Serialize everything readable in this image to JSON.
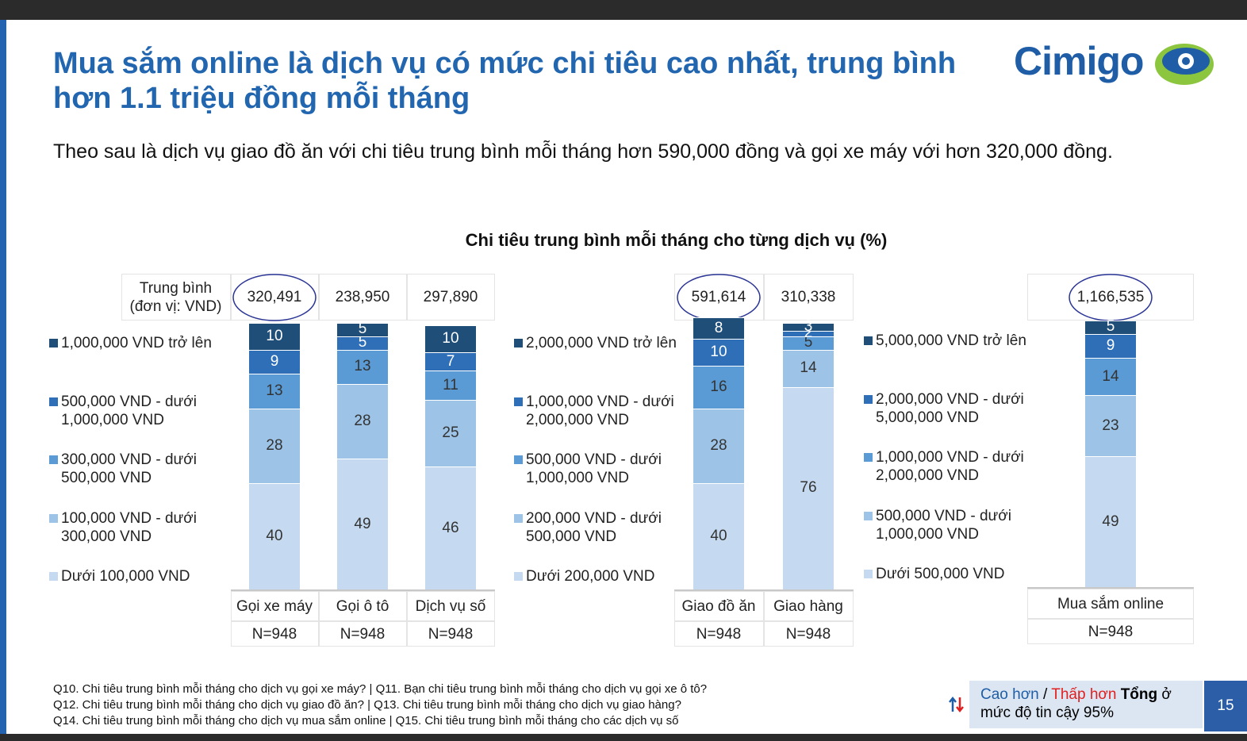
{
  "slide": {
    "title": "Mua sắm online là dịch vụ có mức chi tiêu cao nhất, trung bình hơn 1.1 triệu đồng mỗi tháng",
    "subtitle": "Theo sau là dịch vụ giao đồ ăn với chi tiêu trung bình mỗi tháng hơn 590,000 đồng và gọi xe máy với hơn 320,000 đồng.",
    "logo": "Cimigo",
    "chart_title": "Chi tiêu trung bình mỗi tháng cho từng dịch vụ (%)",
    "footnotes": [
      "Q10. Chi tiêu trung bình mỗi tháng cho dịch vụ gọi xe máy? | Q11. Bạn chi tiêu trung bình mỗi tháng cho dịch vụ gọi xe ô tô?",
      "Q12. Chi tiêu trung bình mỗi tháng cho dịch vụ giao đồ ăn? | Q13. Chi tiêu trung bình mỗi tháng cho dịch vụ giao hàng?",
      "Q14. Chi tiêu trung bình mỗi tháng cho dịch vụ mua sắm online | Q15. Chi tiêu trung bình mỗi tháng cho các dịch vụ số"
    ],
    "significance": [
      "Cao hơn",
      "/",
      "Thấp hơn",
      "Tổng",
      "ở mức độ tin cậy 95%"
    ],
    "page_number": "15"
  },
  "chart_data": [
    {
      "type": "bar",
      "stacked": true,
      "ylim": [
        0,
        100
      ],
      "categories": [
        "Gọi xe máy",
        "Gọi ô tô",
        "Dịch vụ số"
      ],
      "series": [
        {
          "name": "Dưới 100,000 VND",
          "color": "#c5daf0",
          "values": [
            40,
            49,
            46
          ]
        },
        {
          "name": "100,000 VND - dưới 300,000 VND",
          "color": "#9dc3e6",
          "values": [
            28,
            28,
            25
          ]
        },
        {
          "name": "300,000 VND - dưới 500,000 VND",
          "color": "#5b9bd5",
          "values": [
            13,
            13,
            11
          ]
        },
        {
          "name": "500,000 VND - dưới 1,000,000 VND",
          "color": "#2e6fb7",
          "values": [
            9,
            5,
            7
          ]
        },
        {
          "name": "1,000,000 VND trở lên",
          "color": "#1f4e79",
          "values": [
            10,
            5,
            10
          ]
        }
      ],
      "average_label": "Trung bình (đơn vị: VND)",
      "averages": [
        320491,
        238950,
        297890
      ],
      "averages_labels": [
        "320,491",
        "238,950",
        "297,890"
      ],
      "highlight": 0,
      "sample_sizes": [
        "N=948",
        "N=948",
        "N=948"
      ]
    },
    {
      "type": "bar",
      "stacked": true,
      "ylim": [
        0,
        100
      ],
      "categories": [
        "Giao đồ ăn",
        "Giao hàng"
      ],
      "series": [
        {
          "name": "Dưới 200,000 VND",
          "color": "#c5daf0",
          "values": [
            40,
            76
          ]
        },
        {
          "name": "200,000 VND - dưới 500,000 VND",
          "color": "#9dc3e6",
          "values": [
            28,
            14
          ]
        },
        {
          "name": "500,000 VND - dưới 1,000,000 VND",
          "color": "#5b9bd5",
          "values": [
            16,
            5
          ]
        },
        {
          "name": "1,000,000 VND - dưới 2,000,000 VND",
          "color": "#2e6fb7",
          "values": [
            10,
            2
          ]
        },
        {
          "name": "2,000,000 VND trở lên",
          "color": "#1f4e79",
          "values": [
            8,
            3
          ]
        }
      ],
      "averages": [
        591614,
        310338
      ],
      "averages_labels": [
        "591,614",
        "310,338"
      ],
      "highlight": 0,
      "sample_sizes": [
        "N=948",
        "N=948"
      ]
    },
    {
      "type": "bar",
      "stacked": true,
      "ylim": [
        0,
        100
      ],
      "categories": [
        "Mua sắm online"
      ],
      "series": [
        {
          "name": "Dưới 500,000 VND",
          "color": "#c5daf0",
          "values": [
            49
          ]
        },
        {
          "name": "500,000 VND - dưới 1,000,000 VND",
          "color": "#9dc3e6",
          "values": [
            23
          ]
        },
        {
          "name": "1,000,000 VND - dưới 2,000,000 VND",
          "color": "#5b9bd5",
          "values": [
            14
          ]
        },
        {
          "name": "2,000,000 VND - dưới 5,000,000 VND",
          "color": "#2e6fb7",
          "values": [
            9
          ]
        },
        {
          "name": "5,000,000 VND trở lên",
          "color": "#1f4e79",
          "values": [
            5
          ]
        }
      ],
      "averages": [
        1166535
      ],
      "averages_labels": [
        "1,166,535"
      ],
      "highlight": 0,
      "sample_sizes": [
        "N=948"
      ]
    }
  ]
}
